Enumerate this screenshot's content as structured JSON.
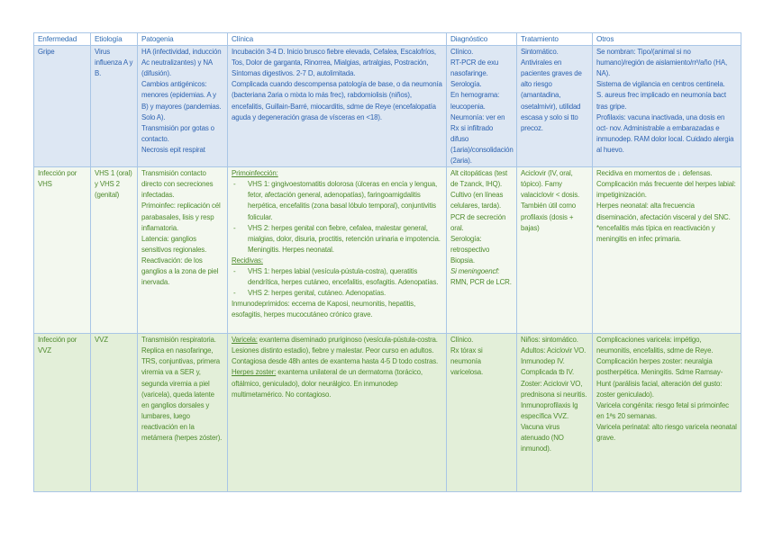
{
  "colors": {
    "header_text": "#2f6db5",
    "gripe_bg": "#dde7f3",
    "gripe_text": "#2e63b0",
    "vhs_bg": "#f3f8ef",
    "vvz_bg": "#e3efd9",
    "green_text": "#4e8a2d",
    "border": "#a9c6e6"
  },
  "headers": [
    "Enfermedad",
    "Etiología",
    "Patogenia",
    "Clínica",
    "Diagnóstico",
    "Tratamiento",
    "Otros"
  ],
  "rows": [
    {
      "style": "r-blue",
      "cells": [
        [
          {
            "t": "Gripe"
          }
        ],
        [
          {
            "t": "Virus influenza A y B."
          }
        ],
        [
          {
            "t": "HA (infectividad, inducción Ac neutralizantes) y NA (difusión)."
          },
          {
            "t": "Cambios antigénicos: menores (epidemias. A y B) y mayores (pandemias. Solo A)."
          },
          {
            "t": "Transmisión por gotas o contacto."
          },
          {
            "t": "Necrosis epit respirat"
          }
        ],
        [
          {
            "t": "Incubación 3-4 D. Inicio brusco fiebre elevada, Cefalea, Escalofríos, Tos, Dolor de garganta, Rinorrea, Mialgias, artralgias, Postración, Síntomas digestivos. 2-7 D, autolimitada."
          },
          {
            "t": "Complicada cuando descompensa patología de base, o da neumonía (bacteriana 2aria o mixta lo más frec), rabdomiolisis (niños), encefalitis, Guillain-Barré, miocarditis, sdme de Reye (encefalopatía aguda y degeneración grasa de vísceras en <18)."
          }
        ],
        [
          {
            "t": "Clínico."
          },
          {
            "t": "RT-PCR de exu nasofaringe."
          },
          {
            "t": "Serología."
          },
          {
            "t": "En hemograma: leucopenia."
          },
          {
            "t": "Neumonía: ver en Rx si infiltrado difuso (1aria)/consolidación (2aria)."
          }
        ],
        [
          {
            "t": "Sintomático."
          },
          {
            "t": "Antivirales en pacientes graves de alto riesgo (amantadina, osetalmivir), utilidad escasa y solo si tto precoz."
          }
        ],
        [
          {
            "t": "Se nombran: Tipo/(animal si no humano)/región de aislamiento/nº/año (HA, NA)."
          },
          {
            "t": "Sistema de vigilancia en centros centinela."
          },
          {
            "t": "S. aureus frec implicado en neumonía bact tras gripe."
          },
          {
            "t": "Profilaxis: vacuna inactivada, una dosis en oct- nov. Administrable a embarazadas e inmunodep. RAM dolor local. Cuidado alergia al huevo."
          }
        ]
      ]
    },
    {
      "style": "r-lgreen",
      "cells": [
        [
          {
            "t": "Infección por VHS"
          }
        ],
        [
          {
            "t": "VHS 1 (oral) y VHS 2 (genital)"
          }
        ],
        [
          {
            "t": "Transmisión contacto directo con secreciones infectadas."
          },
          {
            "t": "Primoinfec: replicación cél parabasales, lisis y resp inflamatoria."
          },
          {
            "t": "Latencia: ganglios sensitivos regionales."
          },
          {
            "t": "Reactivación: de los ganglios a la zona de piel inervada."
          }
        ],
        [
          {
            "t": "Primoinfección:",
            "c": "u"
          },
          {
            "t": "VHS 1: gingivoestomatitis dolorosa (úlceras en encía y lengua, fetor, afectación general, adenopatías), faringoamigdalitis herpética, encefalitis (zona basal lóbulo temporal), conjuntivitis folicular.",
            "c": "li"
          },
          {
            "t": "VHS 2: herpes genital con fiebre, cefalea, malestar general, mialgias, dolor, disuria, proctitis, retención urinaria e impotencia. Meningitis. Herpes neonatal.",
            "c": "li"
          },
          {
            "t": "Recidivas:",
            "c": "u"
          },
          {
            "t": "VHS 1: herpes labial (vesícula-pústula-costra), queratitis dendrítica, herpes cutáneo, encefalitis, esofagitis. Adenopatías.",
            "c": "li"
          },
          {
            "t": "VHS 2: herpes genital, cutáneo. Adenopatías.",
            "c": "li"
          },
          {
            "t": "Inmunodeprimidos: eccema de Kaposi, neumonitis, hepatitis, esofagitis, herpes mucocutáneo crónico grave."
          }
        ],
        [
          {
            "t": "Alt citopáticas (test de Tzanck, IHQ)."
          },
          {
            "t": "Cultivo (en líneas celulares, tarda)."
          },
          {
            "t": "PCR de secreción oral."
          },
          {
            "t": "Serología: retrospectivo"
          },
          {
            "t": "Biopsia."
          },
          {
            "t": "Si meningoencf:",
            "c": "i"
          },
          {
            "t": "RMN, PCR de LCR."
          }
        ],
        [
          {
            "t": "Aciclovir (IV, oral, tópico). Famy valaciclovir < dosis."
          },
          {
            "t": "También útil como profilaxis (dosis + bajas)"
          }
        ],
        [
          {
            "t": "Recidiva en momentos de ↓ defensas."
          },
          {
            "t": "Complicación más frecuente del herpes labial: impetiginización."
          },
          {
            "t": "Herpes neonatal: alta frecuencia diseminación, afectación visceral y del SNC."
          },
          {
            "t": "*encefalitis más típica en reactivación y meningitis en infec primaria."
          }
        ]
      ]
    },
    {
      "style": "r-green",
      "cells": [
        [
          {
            "t": "Infección por VVZ"
          }
        ],
        [
          {
            "t": "VVZ"
          }
        ],
        [
          {
            "t": "Transmisión respiratoria. Replica en nasofaringe, TRS, conjuntivas, primera viremia va a SER y, segunda viremia a piel (varicela), queda latente en ganglios dorsales y lumbares, luego reactivación en la metámera (herpes zóster)."
          }
        ],
        [
          {
            "t": "Varicela:",
            "c": "u",
            "rest": " exantema diseminado pruriginoso (vesícula-pústula-costra. Lesiones distinto estadio), fiebre y malestar. Peor curso en adultos. Contagiosa desde 48h antes de exantema hasta 4-5 D todo costras."
          },
          {
            "t": "Herpes zoster:",
            "c": "u",
            "rest": " exantema unilateral de un dermatoma (torácico, oftálmico, geniculado), dolor neurálgico. En inmunodep multimetamérico. No contagioso."
          }
        ],
        [
          {
            "t": "Clínico."
          },
          {
            "t": "Rx tórax si neumonía varicelosa."
          }
        ],
        [
          {
            "t": "Niños: sintomático."
          },
          {
            "t": "Adultos: Aciclovir VO. Inmunodep IV. Complicada tb IV."
          },
          {
            "t": "Zoster: Aciclovir VO, prednisona si neuritis."
          },
          {
            "t": "Inmunoprofilaxis Ig específica VVZ. Vacuna virus atenuado (NO inmunod)."
          }
        ],
        [
          {
            "t": "Complicaciones varicela: impétigo, neumonitis, encefalitis, sdme de Reye."
          },
          {
            "t": "Complicación herpes zoster: neuralgia postherpética. Meningitis. Sdme Ramsay-Hunt (parálisis facial, alteración del gusto: zoster geniculado)."
          },
          {
            "t": "Varicela congénita: riesgo fetal si primoinfec en 1ªs 20 semanas."
          },
          {
            "t": "Varicela perinatal: alto riesgo varicela neonatal grave."
          }
        ]
      ]
    }
  ]
}
